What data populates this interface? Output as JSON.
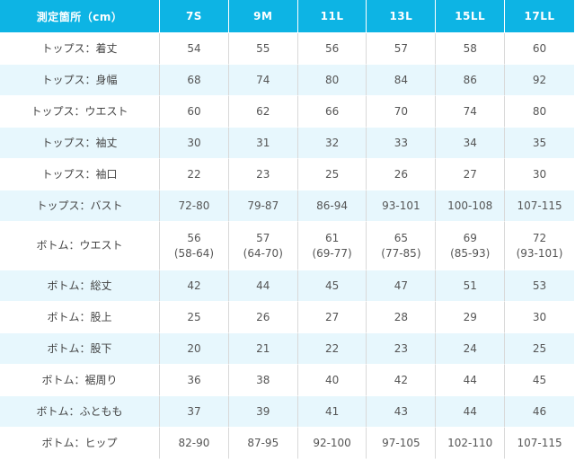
{
  "table": {
    "headers": [
      "測定箇所（cm）",
      "7S",
      "9M",
      "11L",
      "13L",
      "15LL",
      "17LL"
    ],
    "rows": [
      {
        "label": "トップス：着丈",
        "values": [
          "54",
          "55",
          "56",
          "57",
          "58",
          "60"
        ]
      },
      {
        "label": "トップス：身幅",
        "values": [
          "68",
          "74",
          "80",
          "84",
          "86",
          "92"
        ]
      },
      {
        "label": "トップス：ウエスト",
        "values": [
          "60",
          "62",
          "66",
          "70",
          "74",
          "80"
        ]
      },
      {
        "label": "トップス：袖丈",
        "values": [
          "30",
          "31",
          "32",
          "33",
          "34",
          "35"
        ]
      },
      {
        "label": "トップス：袖口",
        "values": [
          "22",
          "23",
          "25",
          "26",
          "27",
          "30"
        ]
      },
      {
        "label": "トップス：バスト",
        "values": [
          "72-80",
          "79-87",
          "86-94",
          "93-101",
          "100-108",
          "107-115"
        ]
      },
      {
        "label": "ボトム：ウエスト",
        "values": [
          "56",
          "57",
          "61",
          "65",
          "69",
          "72"
        ],
        "sub": [
          "(58-64)",
          "(64-70)",
          "(69-77)",
          "(77-85)",
          "(85-93)",
          "(93-101)"
        ]
      },
      {
        "label": "ボトム：総丈",
        "values": [
          "42",
          "44",
          "45",
          "47",
          "51",
          "53"
        ]
      },
      {
        "label": "ボトム：股上",
        "values": [
          "25",
          "26",
          "27",
          "28",
          "29",
          "30"
        ]
      },
      {
        "label": "ボトム：股下",
        "values": [
          "20",
          "21",
          "22",
          "23",
          "24",
          "25"
        ]
      },
      {
        "label": "ボトム：裾周り",
        "values": [
          "36",
          "38",
          "40",
          "42",
          "44",
          "45"
        ]
      },
      {
        "label": "ボトム：ふともも",
        "values": [
          "37",
          "39",
          "41",
          "43",
          "44",
          "46"
        ]
      },
      {
        "label": "ボトム：ヒップ",
        "values": [
          "82-90",
          "87-95",
          "92-100",
          "97-105",
          "102-110",
          "107-115"
        ]
      }
    ]
  },
  "colors": {
    "header_bg": "#0db4e4",
    "header_text": "#ffffff",
    "stripe_bg": "#e7f7fd",
    "cell_text": "#555555"
  }
}
